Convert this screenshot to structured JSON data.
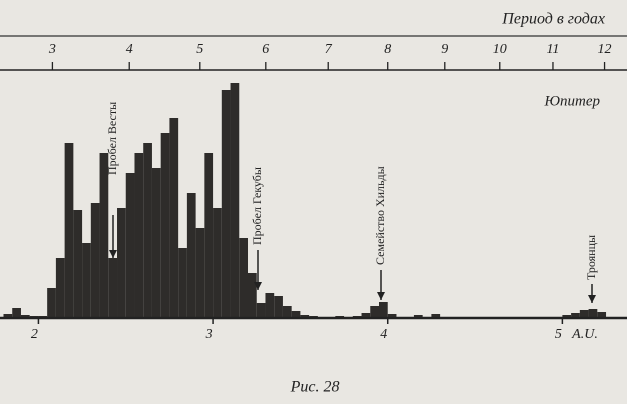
{
  "chart_data": {
    "type": "histogram",
    "title": "Период в годах",
    "caption": "Рис. 28",
    "planet_label": "Юпитер",
    "x_unit_label": "A.U.",
    "annotations": [
      "Пробел Весты",
      "Пробел Гекубы",
      "Семейство Хильды",
      "Троянцы"
    ],
    "bins": [
      1.8,
      1.85,
      1.9,
      1.95,
      2.0,
      2.05,
      2.1,
      2.15,
      2.2,
      2.25,
      2.3,
      2.35,
      2.4,
      2.45,
      2.5,
      2.55,
      2.6,
      2.65,
      2.7,
      2.75,
      2.8,
      2.85,
      2.9,
      2.95,
      3.0,
      3.05,
      3.1,
      3.15,
      3.2,
      3.25,
      3.3,
      3.35,
      3.4,
      3.45,
      3.5,
      3.55,
      3.6,
      3.65,
      3.7,
      3.75,
      3.8,
      3.85,
      3.9,
      3.95,
      4.0,
      4.05,
      4.1,
      4.15,
      4.2,
      4.25,
      4.3,
      4.35,
      4.4,
      4.45,
      4.5,
      4.55,
      4.6,
      4.65,
      4.7,
      4.75,
      4.8,
      4.85,
      4.9,
      4.95,
      5.0,
      5.05,
      5.1,
      5.15,
      5.2,
      5.25,
      5.3,
      5.35
    ],
    "values": [
      4,
      10,
      3,
      2,
      2,
      30,
      60,
      175,
      108,
      75,
      115,
      165,
      60,
      110,
      145,
      165,
      175,
      150,
      185,
      200,
      70,
      125,
      90,
      165,
      110,
      228,
      235,
      80,
      45,
      15,
      25,
      22,
      12,
      7,
      3,
      2,
      1,
      1,
      2,
      1,
      2,
      5,
      12,
      16,
      4,
      1,
      1,
      3,
      1,
      4,
      1,
      0,
      1,
      0,
      1,
      0,
      0,
      1,
      0,
      0,
      0,
      0,
      0,
      0,
      3,
      5,
      8,
      9,
      6,
      1,
      0
    ],
    "color": "#2e2c2a",
    "xlim": [
      1.78,
      5.37
    ],
    "xticks": [
      2,
      3,
      4,
      5
    ],
    "ylim": [
      0,
      250
    ],
    "x2scale": "kepler",
    "x2ticks": [
      3,
      4,
      5,
      6,
      7,
      8,
      9,
      10,
      11,
      12
    ]
  }
}
